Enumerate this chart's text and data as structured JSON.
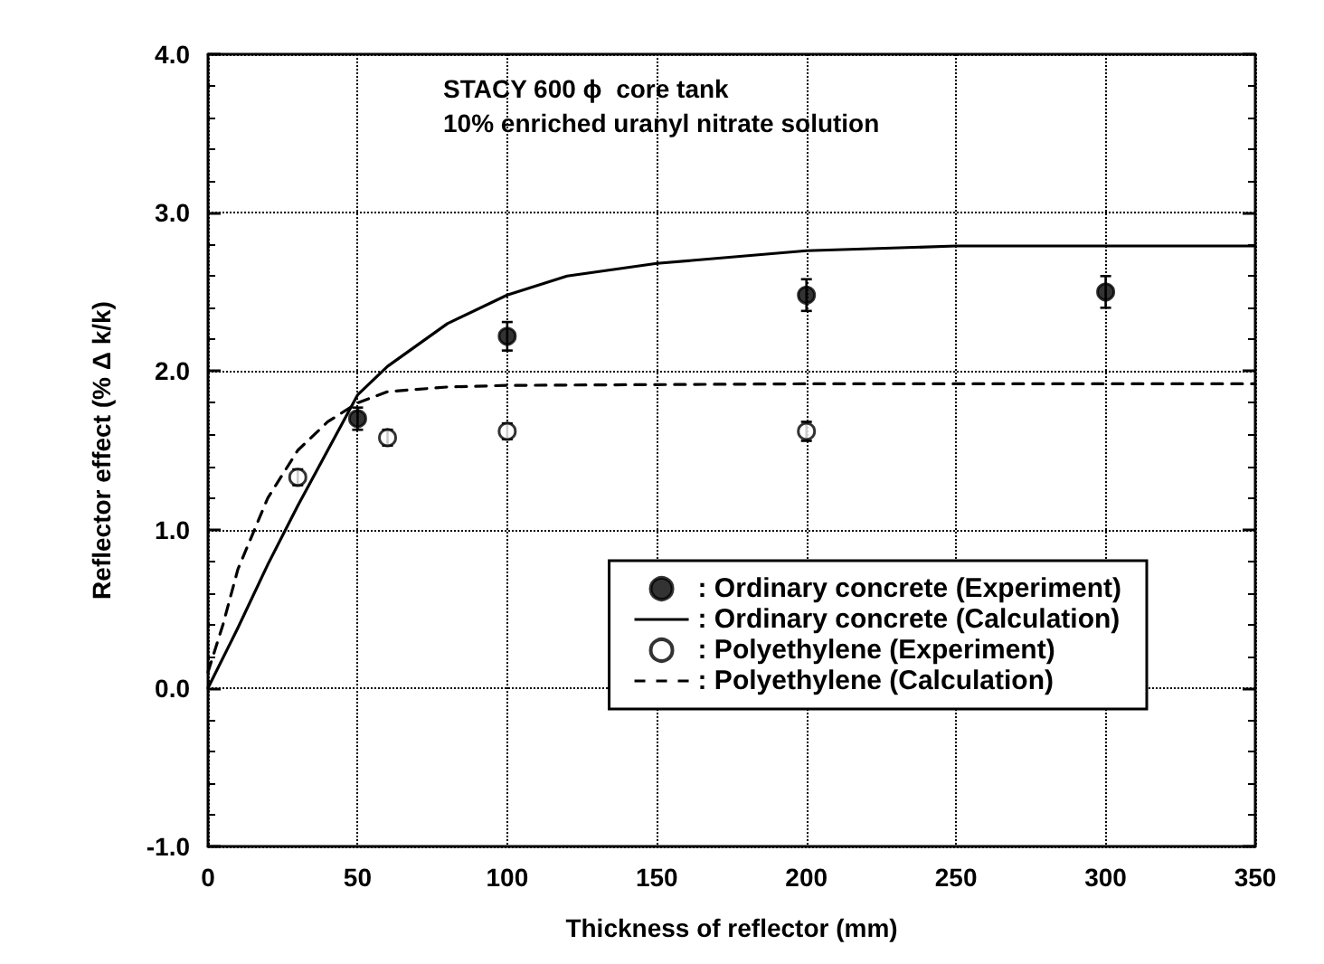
{
  "chart_data": {
    "type": "scatter",
    "xlabel": "Thickness of reflector (mm)",
    "ylabel": "Reflector effect (% Δ k/k)",
    "annotations": [
      "STACY 600 ϕ  core tank",
      "10% enriched uranyl nitrate solution"
    ],
    "series": [
      {
        "name": ": Ordinary concrete (Experiment)",
        "color": "#000000",
        "marker": "circle",
        "x": [
          50,
          100,
          200,
          300
        ],
        "values": [
          1.7,
          2.22,
          2.48,
          2.5
        ],
        "errors": [
          0.07,
          0.09,
          0.1,
          0.1
        ]
      },
      {
        "name": ": Ordinary concrete (Calculation)",
        "type": "line",
        "color": "#000000",
        "marker": "none",
        "line_style": "solid",
        "x": [
          0,
          10,
          20,
          30,
          40,
          50,
          60,
          80,
          100,
          120,
          150,
          200,
          250,
          350
        ],
        "values": [
          0,
          0.38,
          0.78,
          1.15,
          1.5,
          1.85,
          2.03,
          2.3,
          2.48,
          2.6,
          2.68,
          2.76,
          2.79,
          2.79
        ]
      },
      {
        "name": ": Polyethylene (Experiment)",
        "color": "#ffffff",
        "marker": "circle",
        "x": [
          30,
          60,
          100,
          200
        ],
        "values": [
          1.33,
          1.58,
          1.62,
          1.62
        ],
        "errors": [
          0.05,
          0.05,
          0.05,
          0.06
        ]
      },
      {
        "name": ": Polyethylene (Calculation)",
        "type": "line",
        "color": "#000000",
        "marker": "none",
        "line_style": "dashed",
        "x": [
          0,
          5,
          10,
          20,
          30,
          40,
          50,
          60,
          80,
          100,
          200,
          350
        ],
        "values": [
          0.1,
          0.4,
          0.75,
          1.2,
          1.5,
          1.68,
          1.8,
          1.87,
          1.9,
          1.91,
          1.92,
          1.92
        ]
      }
    ],
    "xlim": [
      0,
      350
    ],
    "xticks": [
      0,
      50,
      100,
      150,
      200,
      250,
      300,
      350
    ],
    "ylim": [
      -1,
      4
    ],
    "yticks": [
      {
        "value": -1,
        "label": "-1.0"
      },
      {
        "value": 0,
        "label": "0.0"
      },
      {
        "value": 1,
        "label": "1.0"
      },
      {
        "value": 2,
        "label": "2.0"
      },
      {
        "value": 3,
        "label": "3.0"
      },
      {
        "value": 4,
        "label": "4.0"
      }
    ],
    "grid": true,
    "legend": "bottom right"
  }
}
